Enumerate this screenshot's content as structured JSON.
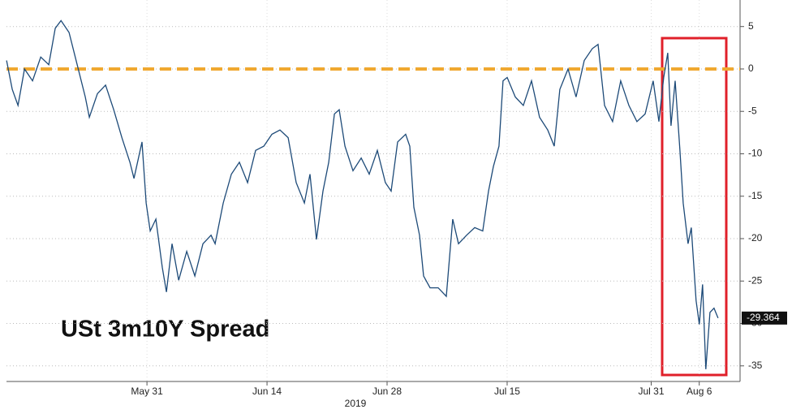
{
  "chart_data": {
    "type": "line",
    "title": "USt 3m10Y Spread",
    "x_sublabel": "2019",
    "x": [
      -11.69,
      -11.22,
      -10.74,
      -10.2,
      -9.53,
      -8.85,
      -8.18,
      -7.64,
      -7.16,
      -6.49,
      -5.81,
      -5.14,
      -4.8,
      -4.12,
      -3.45,
      -2.77,
      -2.09,
      -1.42,
      -1.08,
      -0.41,
      -0.07,
      0.27,
      0.74,
      1.28,
      1.62,
      2.09,
      2.64,
      3.31,
      3.99,
      4.66,
      5.34,
      5.68,
      6.35,
      7.03,
      7.7,
      8.38,
      9.05,
      9.73,
      10.41,
      11.08,
      11.76,
      12.43,
      13.11,
      13.58,
      14.12,
      14.66,
      15.14,
      15.61,
      16.01,
      16.49,
      17.16,
      17.84,
      18.51,
      19.19,
      19.86,
      20.34,
      20.88,
      21.55,
      21.89,
      22.23,
      22.7,
      23.04,
      23.58,
      24.26,
      24.93,
      25.47,
      25.95,
      26.62,
      27.3,
      27.97,
      28.45,
      28.85,
      29.32,
      29.66,
      30,
      30.68,
      31.35,
      32.03,
      32.7,
      33.38,
      33.92,
      34.39,
      35.07,
      35.74,
      36.42,
      37.09,
      37.57,
      38.11,
      38.78,
      39.46,
      40.14,
      40.81,
      41.49,
      42.16,
      42.64,
      43.04,
      43.38,
      43.65,
      43.99,
      44.39,
      44.66,
      45.07,
      45.34,
      45.74,
      46.01,
      46.28,
      46.55,
      46.89,
      47.23,
      47.57
    ],
    "series": [
      {
        "name": "USt 3m10Y Spread",
        "color": "#1d4a78",
        "last_label": "-29.364",
        "values": [
          1,
          -2.4,
          -4.3,
          0,
          -1.4,
          1.4,
          0.5,
          4.8,
          5.7,
          4.3,
          0.5,
          -3.3,
          -5.7,
          -2.9,
          -1.9,
          -4.8,
          -8.1,
          -11,
          -12.9,
          -8.6,
          -15.8,
          -19.1,
          -17.7,
          -23.4,
          -26.3,
          -20.6,
          -24.9,
          -21.5,
          -24.4,
          -20.6,
          -19.6,
          -20.6,
          -15.8,
          -12.4,
          -11,
          -13.4,
          -9.6,
          -9.1,
          -7.7,
          -7.2,
          -8.1,
          -13.4,
          -15.8,
          -12.4,
          -20.1,
          -14.4,
          -11,
          -5.3,
          -4.8,
          -9.1,
          -12,
          -10.5,
          -12.4,
          -9.6,
          -13.4,
          -14.4,
          -8.6,
          -7.7,
          -9.1,
          -16.3,
          -19.6,
          -24.4,
          -25.8,
          -25.8,
          -26.8,
          -17.7,
          -20.6,
          -19.6,
          -18.7,
          -19.1,
          -14.4,
          -11.5,
          -9.1,
          -1.4,
          -1,
          -3.3,
          -4.3,
          -1.4,
          -5.7,
          -7.2,
          -9.1,
          -2.4,
          0,
          -3.3,
          1,
          2.4,
          2.9,
          -4.3,
          -6.2,
          -1.4,
          -4.3,
          -6.2,
          -5.3,
          -1.4,
          -6.2,
          -1,
          1.9,
          -6.7,
          -1.4,
          -9.6,
          -15.8,
          -20.6,
          -18.7,
          -27.3,
          -30.1,
          -25.4,
          -35.4,
          -28.7,
          -28.2,
          -29.364
        ]
      }
    ],
    "reference_line": {
      "value": 0,
      "color": "#f0a830"
    },
    "xlim": [
      -11.7,
      49.4
    ],
    "xticks": [
      {
        "value": 0,
        "label": "May 31"
      },
      {
        "value": 10,
        "label": "Jun 14"
      },
      {
        "value": 20,
        "label": "Jun 28"
      },
      {
        "value": 30,
        "label": "Jul 15"
      },
      {
        "value": 42,
        "label": "Jul 31"
      },
      {
        "value": 46,
        "label": "Aug 6"
      }
    ],
    "ylim": [
      -36.84,
      8.13
    ],
    "yticks": [
      5,
      0,
      -5,
      -10,
      -15,
      -20,
      -25,
      -30,
      -35
    ],
    "grid": true
  }
}
